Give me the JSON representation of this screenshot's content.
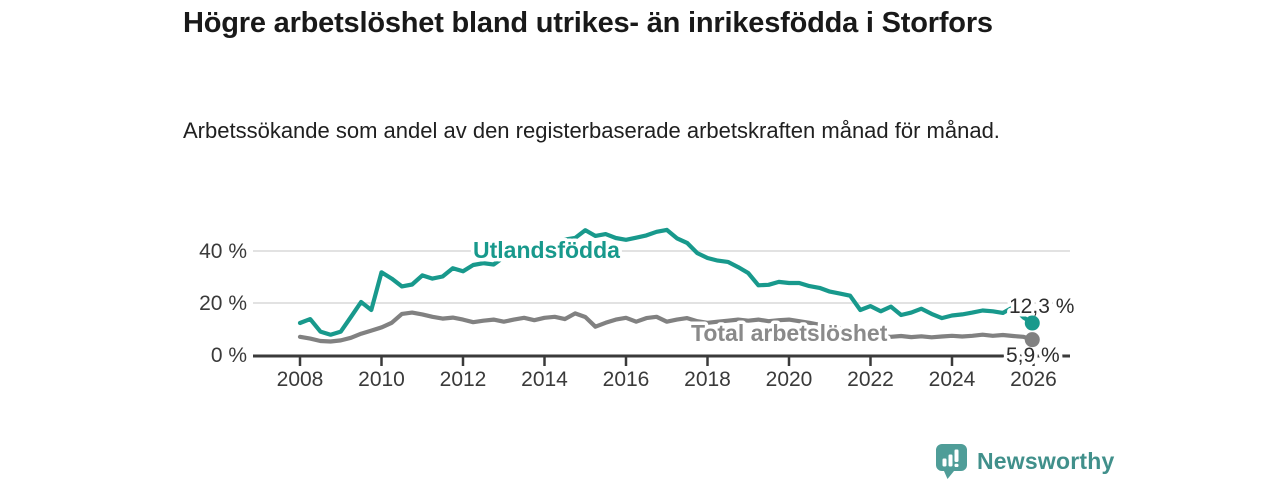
{
  "header": {
    "title": "Högre arbetslöshet bland utrikes- än inrikesfödda i Storfors",
    "subtitle": "Arbetssökande som andel av den registerbaserade arbetskraften månad för månad."
  },
  "footer": {
    "brand": "Newsworthy",
    "brand_text_color": "#41908b",
    "brand_icon_color": "#4f9d98"
  },
  "chart_data": {
    "type": "line",
    "title": "Högre arbetslöshet bland utrikes- än inrikesfödda i Storfors",
    "subtitle": "Arbetssökande som andel av den registerbaserade arbetskraften månad för månad.",
    "unit": "%",
    "grid": "horizontal",
    "colors": {
      "gridline": "#d9d9d9",
      "axis": "#3a3a3a",
      "tick_label": "#3a3a3a",
      "end_label": "#2d2d2d"
    },
    "x_axis": {
      "ticks": [
        2008,
        2010,
        2012,
        2014,
        2016,
        2018,
        2020,
        2022,
        2024,
        2026
      ],
      "range": [
        2006.85,
        2026.9
      ]
    },
    "y_axis": {
      "ticks": [
        0,
        20,
        40
      ],
      "tick_labels": [
        "0 %",
        "20 %",
        "40 %"
      ],
      "range": [
        0,
        50
      ]
    },
    "series": [
      {
        "id": "total",
        "name": "Total arbetslöshet",
        "color": "#818181",
        "label_color": "#8a8a8a",
        "start": 2008,
        "step": 0.25,
        "values": [
          7.0,
          6.3,
          5.4,
          5.2,
          5.6,
          6.6,
          8.2,
          9.4,
          10.6,
          12.4,
          15.8,
          16.3,
          15.6,
          14.7,
          14.0,
          14.4,
          13.6,
          12.6,
          13.2,
          13.6,
          12.8,
          13.6,
          14.3,
          13.4,
          14.3,
          14.7,
          13.8,
          16.0,
          14.6,
          10.9,
          12.4,
          13.6,
          14.3,
          12.8,
          14.2,
          14.7,
          12.8,
          13.6,
          14.2,
          13.0,
          12.4,
          12.8,
          13.2,
          13.6,
          13.2,
          13.6,
          13.0,
          13.4,
          13.6,
          13.0,
          12.4,
          11.6,
          11.0,
          10.2,
          9.4,
          8.4,
          7.6,
          7.2,
          7.0,
          7.3,
          6.9,
          7.2,
          6.8,
          7.1,
          7.4,
          7.1,
          7.4,
          7.8,
          7.4,
          7.7,
          7.3,
          7.0
        ],
        "end": {
          "x": 2025.97,
          "value": 5.9,
          "label": "5,9 %"
        }
      },
      {
        "id": "utlandsfodda",
        "name": "Utlandsfödda",
        "color": "#18998c",
        "label_color": "#18998c",
        "start": 2008,
        "step": 0.25,
        "values": [
          12.3,
          13.8,
          9.0,
          7.8,
          9.0,
          14.6,
          20.4,
          17.3,
          31.8,
          29.4,
          26.4,
          27.1,
          30.6,
          29.4,
          30.2,
          33.4,
          32.2,
          34.6,
          35.3,
          34.8,
          37.6,
          37.0,
          39.3,
          38.8,
          42.1,
          41.4,
          44.4,
          45.0,
          48.0,
          45.8,
          46.5,
          45.0,
          44.3,
          45.1,
          46.0,
          47.4,
          48.1,
          44.9,
          43.1,
          39.2,
          37.3,
          36.3,
          35.8,
          33.8,
          31.5,
          26.8,
          27.0,
          28.1,
          27.7,
          27.7,
          26.5,
          25.8,
          24.4,
          23.6,
          22.8,
          17.3,
          18.8,
          16.8,
          18.6,
          15.4,
          16.3,
          17.8,
          15.8,
          14.2,
          15.2,
          15.6,
          16.3,
          17.1,
          16.8,
          16.2,
          18.4,
          14.5
        ],
        "end": {
          "x": 2025.97,
          "value": 12.3,
          "label": "12,3 %"
        }
      }
    ]
  }
}
